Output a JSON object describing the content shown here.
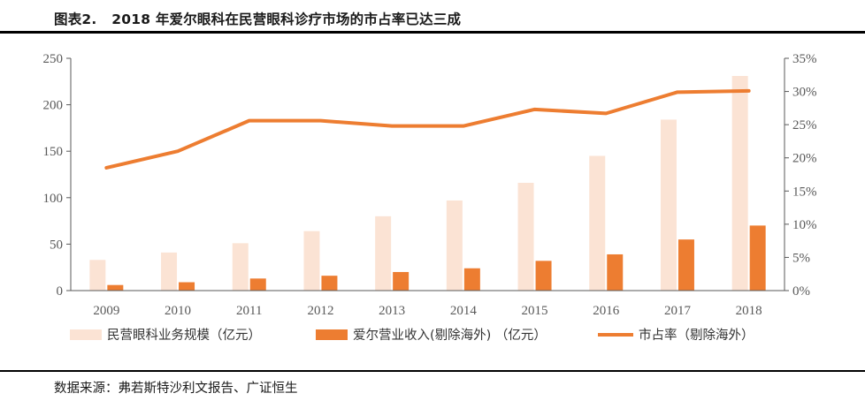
{
  "figure": {
    "label": "图表2.",
    "title": "2018 年爱尔眼科在民营眼科诊疗市场的市占率已达三成",
    "source": "数据来源：弗若斯特沙利文报告、广证恒生"
  },
  "colors": {
    "market_bar": "#FBE3D4",
    "revenue_bar": "#ED7D31",
    "share_line": "#ED7D31",
    "axis": "#595959",
    "tick_text": "#595959"
  },
  "chart_data": {
    "type": "bar",
    "categories": [
      "2009",
      "2010",
      "2011",
      "2012",
      "2013",
      "2014",
      "2015",
      "2016",
      "2017",
      "2018"
    ],
    "series": [
      {
        "name": "民营眼科业务规模（亿元）",
        "type": "bar",
        "axis": "left",
        "values": [
          33,
          41,
          51,
          64,
          80,
          97,
          116,
          145,
          184,
          231
        ]
      },
      {
        "name": "爱尔营业收入(剔除海外) （亿元）",
        "type": "bar",
        "axis": "left",
        "values": [
          6,
          9,
          13,
          16,
          20,
          24,
          32,
          39,
          55,
          70
        ]
      },
      {
        "name": "市占率（剔除海外）",
        "type": "line",
        "axis": "right",
        "values": [
          0.185,
          0.21,
          0.256,
          0.256,
          0.248,
          0.248,
          0.273,
          0.267,
          0.299,
          0.301
        ]
      }
    ],
    "y_left": {
      "ylim": [
        0,
        250
      ],
      "ticks": [
        0,
        50,
        100,
        150,
        200,
        250
      ],
      "tick_labels": [
        "0",
        "50",
        "100",
        "150",
        "200",
        "250"
      ]
    },
    "y_right": {
      "ylim": [
        0,
        0.35
      ],
      "ticks": [
        0,
        0.05,
        0.1,
        0.15,
        0.2,
        0.25,
        0.3,
        0.35
      ],
      "tick_labels": [
        "0%",
        "5%",
        "10%",
        "15%",
        "20%",
        "25%",
        "30%",
        "35%"
      ]
    },
    "grid": false,
    "legend_position": "bottom",
    "xlabel": "",
    "ylabel": ""
  }
}
